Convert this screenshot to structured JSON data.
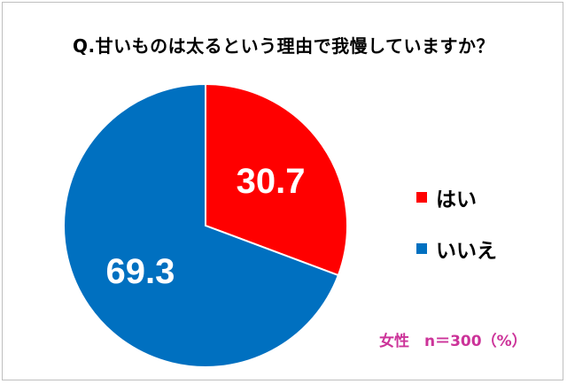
{
  "chart_data": {
    "type": "pie",
    "title": "Q.甘いものは太るという理由で我慢していますか？",
    "categories": [
      "はい",
      "いいえ"
    ],
    "values": [
      30.7,
      69.3
    ],
    "value_labels": [
      "30.7",
      "69.3"
    ],
    "colors": [
      "#ff0000",
      "#0070c0"
    ],
    "legend_position": "right",
    "note": "女性　n＝300（%）"
  }
}
